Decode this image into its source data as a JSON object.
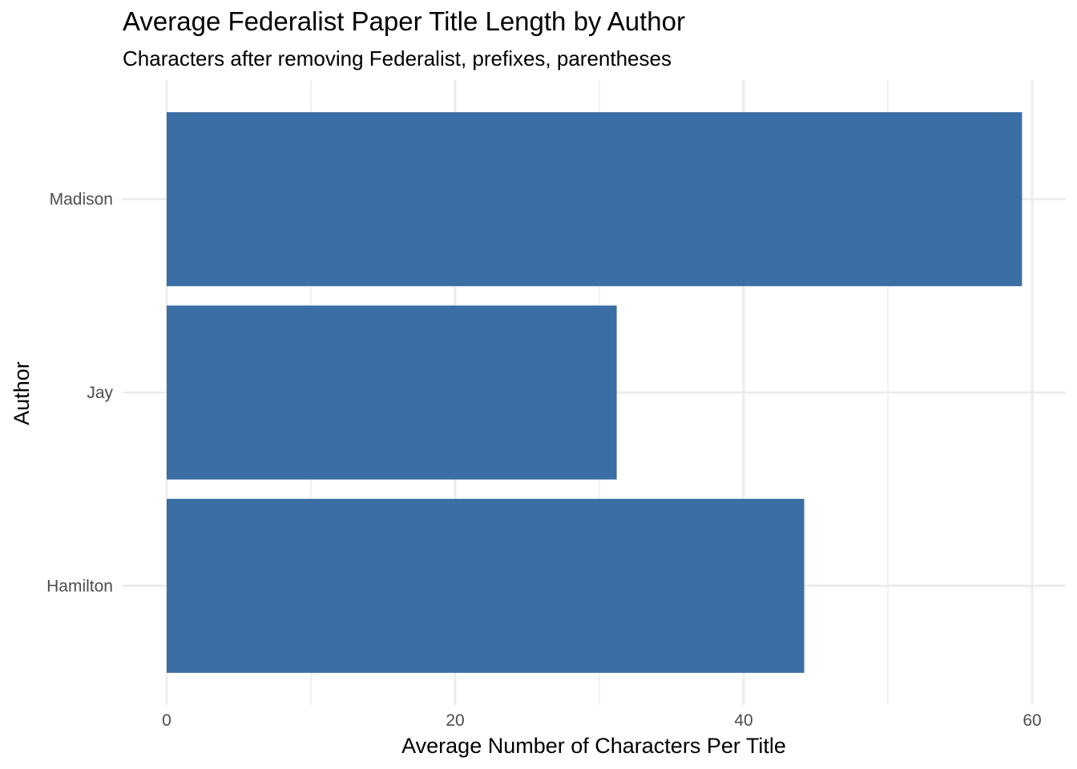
{
  "chart_data": {
    "type": "bar",
    "orientation": "horizontal",
    "title": "Average Federalist Paper Title Length by Author",
    "subtitle": "Characters after removing Federalist, prefixes, parentheses",
    "xlabel": "Average Number of Characters Per Title",
    "ylabel": "Author",
    "categories": [
      "Hamilton",
      "Jay",
      "Madison"
    ],
    "values": [
      44.2,
      31.2,
      59.3
    ],
    "xlim": [
      0,
      62
    ],
    "x_ticks": [
      0,
      20,
      40,
      60
    ],
    "x_tick_labels": [
      "0",
      "20",
      "40",
      "60"
    ],
    "x_minor_ticks": [
      10,
      30,
      50
    ],
    "grid": true,
    "legend": "none",
    "colors": {
      "bar": "#3A6EA5",
      "grid": "#EBEBEB",
      "tick_label": "#4D4D4D",
      "text": "#000000",
      "background": "#FFFFFF"
    }
  }
}
